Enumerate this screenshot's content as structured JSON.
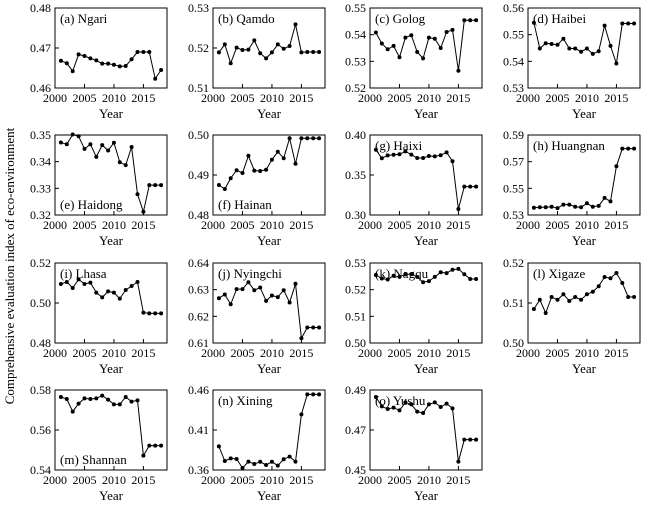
{
  "figure": {
    "ylabel": "Comprehensive evaluation index of eco-environment",
    "xlabel": "Year"
  },
  "chart_data": [
    {
      "type": "line",
      "label": "(a) Ngari",
      "xticks": [
        2000,
        2005,
        2010,
        2015
      ],
      "xlim": [
        2000,
        2019
      ],
      "ylim": [
        0.46,
        0.48
      ],
      "yticks": [
        "0.46",
        "0.47",
        "0.48"
      ],
      "x": [
        2001,
        2002,
        2003,
        2004,
        2005,
        2006,
        2007,
        2008,
        2009,
        2010,
        2011,
        2012,
        2013,
        2014,
        2015,
        2016,
        2017,
        2018
      ],
      "values": [
        0.4668,
        0.4662,
        0.4642,
        0.4684,
        0.468,
        0.4674,
        0.4669,
        0.4661,
        0.4661,
        0.4658,
        0.4654,
        0.4655,
        0.4672,
        0.469,
        0.469,
        0.469,
        0.4623,
        0.4645
      ]
    },
    {
      "type": "line",
      "label": "(b) Qamdo",
      "xticks": [
        2000,
        2005,
        2010,
        2015
      ],
      "xlim": [
        2000,
        2019
      ],
      "ylim": [
        0.51,
        0.53
      ],
      "yticks": [
        "0.51",
        "0.52",
        "0.53"
      ],
      "x": [
        2001,
        2002,
        2003,
        2004,
        2005,
        2006,
        2007,
        2008,
        2009,
        2010,
        2011,
        2012,
        2013,
        2014,
        2015,
        2016,
        2017,
        2018
      ],
      "values": [
        0.5189,
        0.5209,
        0.5162,
        0.5201,
        0.5195,
        0.5196,
        0.5219,
        0.5187,
        0.5174,
        0.5189,
        0.5209,
        0.5198,
        0.5205,
        0.5259,
        0.5189,
        0.519,
        0.519,
        0.519
      ]
    },
    {
      "type": "line",
      "label": "(c) Golog",
      "xticks": [
        2000,
        2005,
        2010,
        2015
      ],
      "xlim": [
        2000,
        2019
      ],
      "ylim": [
        0.52,
        0.55
      ],
      "yticks": [
        "0.52",
        "0.53",
        "0.54",
        "0.55"
      ],
      "x": [
        2001,
        2002,
        2003,
        2004,
        2005,
        2006,
        2007,
        2008,
        2009,
        2010,
        2011,
        2012,
        2013,
        2014,
        2015,
        2016,
        2017,
        2018
      ],
      "values": [
        0.5408,
        0.5367,
        0.5345,
        0.5358,
        0.5315,
        0.5389,
        0.5398,
        0.5335,
        0.5311,
        0.5389,
        0.5385,
        0.535,
        0.541,
        0.5418,
        0.5265,
        0.5454,
        0.5454,
        0.5454
      ]
    },
    {
      "type": "line",
      "label": "(d) Haibei",
      "xticks": [
        2000,
        2005,
        2010,
        2015
      ],
      "xlim": [
        2000,
        2019
      ],
      "ylim": [
        0.53,
        0.56
      ],
      "yticks": [
        "0.53",
        "0.54",
        "0.55",
        "0.56"
      ],
      "x": [
        2001,
        2002,
        2003,
        2004,
        2005,
        2006,
        2007,
        2008,
        2009,
        2010,
        2011,
        2012,
        2013,
        2014,
        2015,
        2016,
        2017,
        2018
      ],
      "values": [
        0.5545,
        0.5448,
        0.5468,
        0.5465,
        0.5462,
        0.5485,
        0.5448,
        0.5448,
        0.5436,
        0.5448,
        0.5428,
        0.5438,
        0.5534,
        0.5458,
        0.5392,
        0.5542,
        0.5542,
        0.5542
      ]
    },
    {
      "type": "line",
      "label": "(e) Haidong",
      "xticks": [
        2000,
        2005,
        2010,
        2015
      ],
      "xlim": [
        2000,
        2019
      ],
      "ylim": [
        0.32,
        0.35
      ],
      "yticks": [
        "0.32",
        "0.33",
        "0.34",
        "0.35"
      ],
      "x": [
        2001,
        2002,
        2003,
        2004,
        2005,
        2006,
        2007,
        2008,
        2009,
        2010,
        2011,
        2012,
        2013,
        2014,
        2015,
        2016,
        2017,
        2018
      ],
      "values": [
        0.3472,
        0.3465,
        0.3502,
        0.3495,
        0.3448,
        0.3465,
        0.3418,
        0.3462,
        0.3442,
        0.3471,
        0.3398,
        0.3387,
        0.3455,
        0.3278,
        0.3212,
        0.3312,
        0.3312,
        0.3312
      ]
    },
    {
      "type": "line",
      "label": "(f) Hainan",
      "xticks": [
        2000,
        2005,
        2010,
        2015
      ],
      "xlim": [
        2000,
        2019
      ],
      "ylim": [
        0.48,
        0.5
      ],
      "yticks": [
        "0.48",
        "0.49",
        "0.50"
      ],
      "x": [
        2001,
        2002,
        2003,
        2004,
        2005,
        2006,
        2007,
        2008,
        2009,
        2010,
        2011,
        2012,
        2013,
        2014,
        2015,
        2016,
        2017,
        2018
      ],
      "values": [
        0.4875,
        0.4865,
        0.4892,
        0.4912,
        0.4905,
        0.4948,
        0.4911,
        0.491,
        0.4913,
        0.4938,
        0.4958,
        0.4942,
        0.4992,
        0.4928,
        0.4992,
        0.4992,
        0.4992,
        0.4992
      ]
    },
    {
      "type": "line",
      "label": "(g) Haixi",
      "xticks": [
        2000,
        2005,
        2010,
        2015
      ],
      "xlim": [
        2000,
        2019
      ],
      "ylim": [
        0.3,
        0.4
      ],
      "yticks": [
        "0.30",
        "0.35",
        "0.40"
      ],
      "x": [
        2001,
        2002,
        2003,
        2004,
        2005,
        2006,
        2007,
        2008,
        2009,
        2010,
        2011,
        2012,
        2013,
        2014,
        2015,
        2016,
        2017,
        2018
      ],
      "values": [
        0.3815,
        0.371,
        0.3745,
        0.3752,
        0.376,
        0.3795,
        0.3755,
        0.3712,
        0.3712,
        0.3738,
        0.3732,
        0.3748,
        0.3782,
        0.3672,
        0.3075,
        0.3355,
        0.3355,
        0.3355
      ]
    },
    {
      "type": "line",
      "label": "(h) Huangnan",
      "xticks": [
        2000,
        2005,
        2010,
        2015
      ],
      "xlim": [
        2000,
        2019
      ],
      "ylim": [
        0.53,
        0.59
      ],
      "yticks": [
        "0.53",
        "0.55",
        "0.57",
        "0.59"
      ],
      "x": [
        2001,
        2002,
        2003,
        2004,
        2005,
        2006,
        2007,
        2008,
        2009,
        2010,
        2011,
        2012,
        2013,
        2014,
        2015,
        2016,
        2017,
        2018
      ],
      "values": [
        0.5355,
        0.5358,
        0.5358,
        0.5362,
        0.5352,
        0.5378,
        0.5378,
        0.5362,
        0.5358,
        0.5388,
        0.5362,
        0.5368,
        0.5428,
        0.5402,
        0.5665,
        0.5798,
        0.5798,
        0.5798
      ]
    },
    {
      "type": "line",
      "label": "(i) Lhasa",
      "xticks": [
        2000,
        2005,
        2010,
        2015
      ],
      "xlim": [
        2000,
        2019
      ],
      "ylim": [
        0.48,
        0.52
      ],
      "yticks": [
        "0.48",
        "0.50",
        "0.52"
      ],
      "x": [
        2001,
        2002,
        2003,
        2004,
        2005,
        2006,
        2007,
        2008,
        2009,
        2010,
        2011,
        2012,
        2013,
        2014,
        2015,
        2016,
        2017,
        2018
      ],
      "values": [
        0.5095,
        0.5105,
        0.5075,
        0.5118,
        0.5095,
        0.5102,
        0.5052,
        0.5028,
        0.5058,
        0.5052,
        0.5022,
        0.5065,
        0.5085,
        0.5105,
        0.4952,
        0.4948,
        0.4948,
        0.4948
      ]
    },
    {
      "type": "line",
      "label": "(j) Nyingchi",
      "xticks": [
        2000,
        2005,
        2010,
        2015
      ],
      "xlim": [
        2000,
        2019
      ],
      "ylim": [
        0.61,
        0.64
      ],
      "yticks": [
        "0.61",
        "0.62",
        "0.63",
        "0.64"
      ],
      "x": [
        2001,
        2002,
        2003,
        2004,
        2005,
        2006,
        2007,
        2008,
        2009,
        2010,
        2011,
        2012,
        2013,
        2014,
        2015,
        2016,
        2017,
        2018
      ],
      "values": [
        0.6268,
        0.6282,
        0.6245,
        0.6302,
        0.6302,
        0.6328,
        0.6298,
        0.6308,
        0.6258,
        0.6278,
        0.6272,
        0.6298,
        0.6252,
        0.6322,
        0.6118,
        0.6158,
        0.6158,
        0.6158
      ]
    },
    {
      "type": "line",
      "label": "(k) Nagqu",
      "xticks": [
        2000,
        2005,
        2010,
        2015
      ],
      "xlim": [
        2000,
        2019
      ],
      "ylim": [
        0.5,
        0.53
      ],
      "yticks": [
        "0.50",
        "0.51",
        "0.52",
        "0.53"
      ],
      "x": [
        2001,
        2002,
        2003,
        2004,
        2005,
        2006,
        2007,
        2008,
        2009,
        2010,
        2011,
        2012,
        2013,
        2014,
        2015,
        2016,
        2017,
        2018
      ],
      "values": [
        0.5255,
        0.5242,
        0.5238,
        0.5252,
        0.5248,
        0.5258,
        0.5258,
        0.5248,
        0.5228,
        0.5232,
        0.5248,
        0.5265,
        0.5262,
        0.5275,
        0.5278,
        0.5258,
        0.524,
        0.524
      ]
    },
    {
      "type": "line",
      "label": "(l) Xigaze",
      "xticks": [
        2000,
        2005,
        2010,
        2015
      ],
      "xlim": [
        2000,
        2019
      ],
      "ylim": [
        0.5,
        0.52
      ],
      "yticks": [
        "0.50",
        "0.51",
        "0.52"
      ],
      "x": [
        2001,
        2002,
        2003,
        2004,
        2005,
        2006,
        2007,
        2008,
        2009,
        2010,
        2011,
        2012,
        2013,
        2014,
        2015,
        2016,
        2017,
        2018
      ],
      "values": [
        0.5085,
        0.5108,
        0.5075,
        0.5115,
        0.5108,
        0.5122,
        0.5105,
        0.5115,
        0.5108,
        0.5122,
        0.5128,
        0.5142,
        0.5165,
        0.5162,
        0.5175,
        0.515,
        0.5115,
        0.5115
      ]
    },
    {
      "type": "line",
      "label": "(m) Shannan",
      "xticks": [
        2000,
        2005,
        2010,
        2015
      ],
      "xlim": [
        2000,
        2019
      ],
      "ylim": [
        0.54,
        0.58
      ],
      "yticks": [
        "0.54",
        "0.56",
        "0.58"
      ],
      "x": [
        2001,
        2002,
        2003,
        2004,
        2005,
        2006,
        2007,
        2008,
        2009,
        2010,
        2011,
        2012,
        2013,
        2014,
        2015,
        2016,
        2017,
        2018
      ],
      "values": [
        0.5765,
        0.5755,
        0.5692,
        0.5732,
        0.5758,
        0.5755,
        0.5758,
        0.5772,
        0.5752,
        0.5728,
        0.5728,
        0.5765,
        0.5742,
        0.5748,
        0.5472,
        0.5522,
        0.5522,
        0.5522
      ]
    },
    {
      "type": "line",
      "label": "(n) Xining",
      "xticks": [
        2000,
        2005,
        2010,
        2015
      ],
      "xlim": [
        2000,
        2019
      ],
      "ylim": [
        0.36,
        0.46
      ],
      "yticks": [
        "0.36",
        "0.41",
        "0.46"
      ],
      "x": [
        2001,
        2002,
        2003,
        2004,
        2005,
        2006,
        2007,
        2008,
        2009,
        2010,
        2011,
        2012,
        2013,
        2014,
        2015,
        2016,
        2017,
        2018
      ],
      "values": [
        0.3895,
        0.3712,
        0.3745,
        0.3738,
        0.3625,
        0.3705,
        0.3675,
        0.3702,
        0.3662,
        0.3702,
        0.3655,
        0.3735,
        0.3768,
        0.3705,
        0.4295,
        0.4545,
        0.4545,
        0.4545
      ]
    },
    {
      "type": "line",
      "label": "(o) Yushu",
      "xticks": [
        2000,
        2005,
        2010,
        2015
      ],
      "xlim": [
        2000,
        2019
      ],
      "ylim": [
        0.45,
        0.49
      ],
      "yticks": [
        "0.45",
        "0.47",
        "0.49"
      ],
      "x": [
        2001,
        2002,
        2003,
        2004,
        2005,
        2006,
        2007,
        2008,
        2009,
        2010,
        2011,
        2012,
        2013,
        2014,
        2015,
        2016,
        2017,
        2018
      ],
      "values": [
        0.4865,
        0.4818,
        0.4805,
        0.4812,
        0.4798,
        0.4838,
        0.4828,
        0.4792,
        0.4785,
        0.4828,
        0.4838,
        0.4815,
        0.4832,
        0.4808,
        0.4542,
        0.4652,
        0.4652,
        0.4652
      ]
    }
  ]
}
